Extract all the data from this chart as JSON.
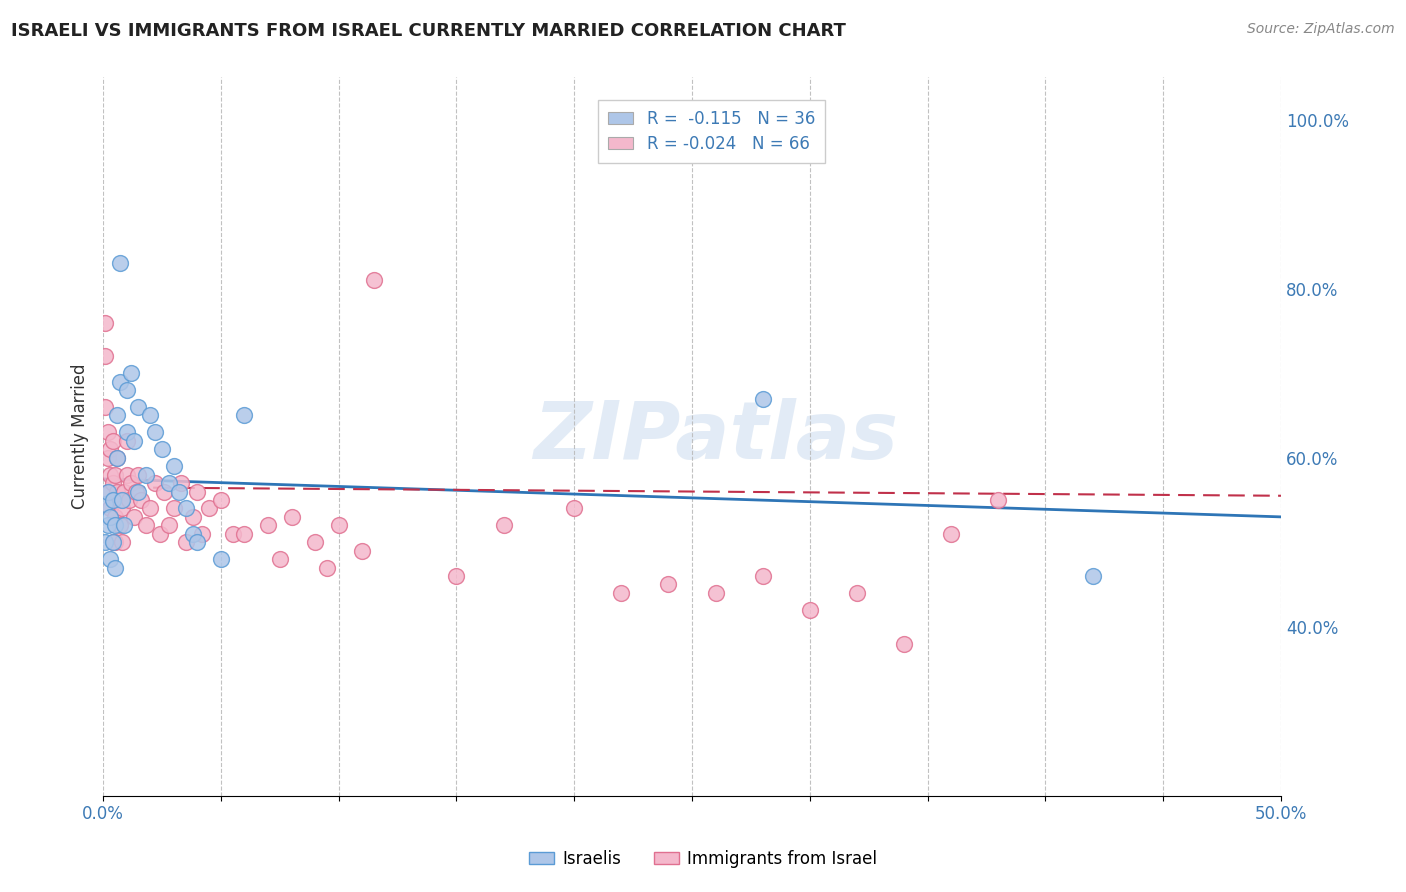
{
  "title": "ISRAELI VS IMMIGRANTS FROM ISRAEL CURRENTLY MARRIED CORRELATION CHART",
  "source": "Source: ZipAtlas.com",
  "ylabel": "Currently Married",
  "xlim": [
    0.0,
    0.5
  ],
  "ylim": [
    0.2,
    1.05
  ],
  "xtick_positions": [
    0.0,
    0.05,
    0.1,
    0.15,
    0.2,
    0.25,
    0.3,
    0.35,
    0.4,
    0.45,
    0.5
  ],
  "xticklabels": [
    "0.0%",
    "",
    "",
    "",
    "",
    "",
    "",
    "",
    "",
    "",
    "50.0%"
  ],
  "ytick_positions": [
    0.4,
    0.6,
    0.8,
    1.0
  ],
  "ytick_labels": [
    "40.0%",
    "60.0%",
    "80.0%",
    "100.0%"
  ],
  "legend_line1": "R =  -0.115   N = 36",
  "legend_line2": "R = -0.024   N = 66",
  "watermark_text": "ZIPatlas",
  "series1_color": "#aec6e8",
  "series1_edge": "#5b9bd5",
  "series2_color": "#f4b8cc",
  "series2_edge": "#e07090",
  "trend1_color": "#2e75b6",
  "trend2_color": "#c0304a",
  "legend1_fill": "#aec6e8",
  "legend2_fill": "#f4b8cc",
  "background_color": "#ffffff",
  "grid_color": "#bbbbbb",
  "israelis_x": [
    0.001,
    0.001,
    0.002,
    0.002,
    0.003,
    0.003,
    0.004,
    0.004,
    0.005,
    0.005,
    0.006,
    0.006,
    0.007,
    0.007,
    0.008,
    0.009,
    0.01,
    0.01,
    0.012,
    0.013,
    0.015,
    0.015,
    0.018,
    0.02,
    0.022,
    0.025,
    0.028,
    0.03,
    0.032,
    0.035,
    0.038,
    0.04,
    0.05,
    0.06,
    0.28,
    0.42
  ],
  "israelis_y": [
    0.545,
    0.5,
    0.52,
    0.56,
    0.48,
    0.53,
    0.5,
    0.55,
    0.47,
    0.52,
    0.6,
    0.65,
    0.69,
    0.83,
    0.55,
    0.52,
    0.63,
    0.68,
    0.7,
    0.62,
    0.66,
    0.56,
    0.58,
    0.65,
    0.63,
    0.61,
    0.57,
    0.59,
    0.56,
    0.54,
    0.51,
    0.5,
    0.48,
    0.65,
    0.67,
    0.46
  ],
  "immigrants_x": [
    0.001,
    0.001,
    0.001,
    0.002,
    0.002,
    0.002,
    0.003,
    0.003,
    0.003,
    0.004,
    0.004,
    0.004,
    0.005,
    0.005,
    0.005,
    0.006,
    0.006,
    0.007,
    0.007,
    0.008,
    0.008,
    0.009,
    0.01,
    0.01,
    0.011,
    0.012,
    0.013,
    0.014,
    0.015,
    0.016,
    0.018,
    0.02,
    0.022,
    0.024,
    0.026,
    0.028,
    0.03,
    0.033,
    0.035,
    0.038,
    0.04,
    0.042,
    0.045,
    0.05,
    0.055,
    0.06,
    0.07,
    0.075,
    0.08,
    0.09,
    0.095,
    0.1,
    0.11,
    0.115,
    0.15,
    0.17,
    0.2,
    0.22,
    0.24,
    0.26,
    0.28,
    0.3,
    0.32,
    0.34,
    0.36,
    0.38
  ],
  "immigrants_y": [
    0.72,
    0.76,
    0.66,
    0.6,
    0.63,
    0.56,
    0.58,
    0.61,
    0.54,
    0.57,
    0.62,
    0.5,
    0.5,
    0.53,
    0.58,
    0.56,
    0.6,
    0.52,
    0.55,
    0.5,
    0.54,
    0.56,
    0.58,
    0.62,
    0.55,
    0.57,
    0.53,
    0.56,
    0.58,
    0.55,
    0.52,
    0.54,
    0.57,
    0.51,
    0.56,
    0.52,
    0.54,
    0.57,
    0.5,
    0.53,
    0.56,
    0.51,
    0.54,
    0.55,
    0.51,
    0.51,
    0.52,
    0.48,
    0.53,
    0.5,
    0.47,
    0.52,
    0.49,
    0.81,
    0.46,
    0.52,
    0.54,
    0.44,
    0.45,
    0.44,
    0.46,
    0.42,
    0.44,
    0.38,
    0.51,
    0.55
  ]
}
